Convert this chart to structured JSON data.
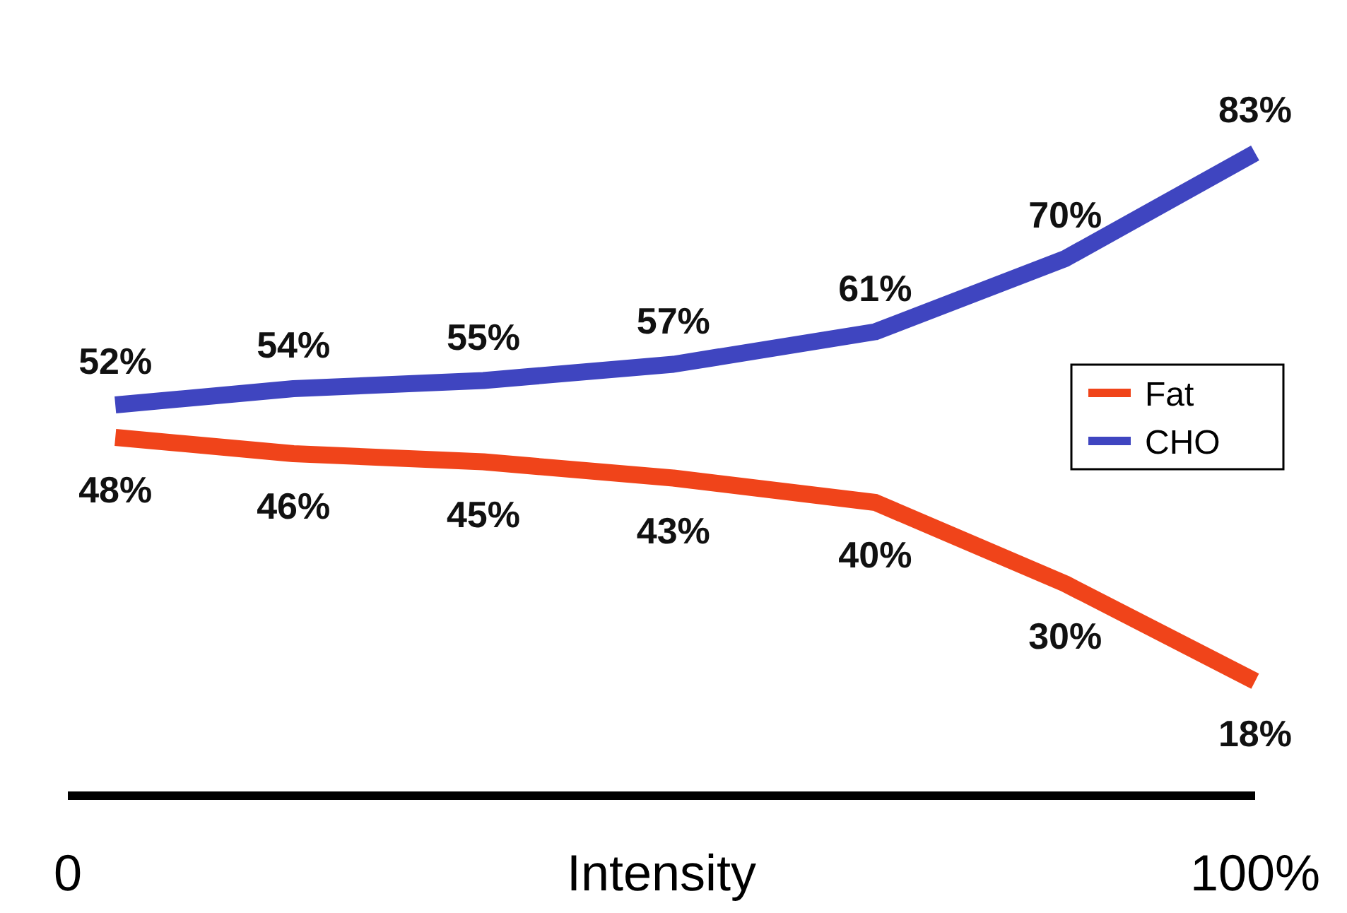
{
  "chart_data": {
    "type": "line",
    "xlabel": "Intensity",
    "x": [
      4,
      19,
      35,
      51,
      68,
      84,
      100
    ],
    "xlim": [
      0,
      100
    ],
    "xticks": [
      {
        "value": 0,
        "label": "0"
      },
      {
        "value": 100,
        "label": "100%"
      }
    ],
    "tick_labels": "x",
    "legend": "right",
    "series": [
      {
        "name": "Fat",
        "color": "#f0441a",
        "values": [
          48,
          46,
          45,
          43,
          40,
          30,
          18
        ],
        "value_labels": [
          "48%",
          "46%",
          "45%",
          "43%",
          "40%",
          "30%",
          "18%"
        ]
      },
      {
        "name": "CHO",
        "color": "#3f45c0",
        "values": [
          52,
          54,
          55,
          57,
          61,
          70,
          83
        ],
        "value_labels": [
          "52%",
          "54%",
          "55%",
          "57%",
          "61%",
          "70%",
          "83%"
        ]
      }
    ]
  }
}
